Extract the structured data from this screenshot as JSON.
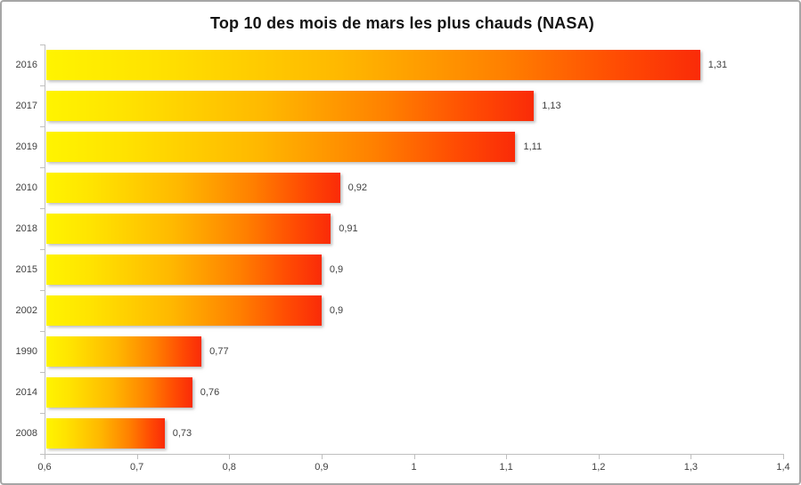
{
  "title": "Top 10 des mois de mars les plus chauds (NASA)",
  "chart_data": {
    "type": "bar",
    "orientation": "horizontal",
    "title": "Top 10 des mois de mars les plus chauds (NASA)",
    "xlabel": "",
    "ylabel": "",
    "categories": [
      "2016",
      "2017",
      "2019",
      "2010",
      "2018",
      "2015",
      "2002",
      "1990",
      "2014",
      "2008"
    ],
    "values": [
      1.31,
      1.13,
      1.11,
      0.92,
      0.91,
      0.9,
      0.9,
      0.77,
      0.76,
      0.73
    ],
    "value_labels": [
      "1,31",
      "1,13",
      "1,11",
      "0,92",
      "0,91",
      "0,9",
      "0,9",
      "0,77",
      "0,76",
      "0,73"
    ],
    "xlim": [
      0.6,
      1.4
    ],
    "x_ticks": [
      0.6,
      0.7,
      0.8,
      0.9,
      1,
      1.1,
      1.2,
      1.3,
      1.4
    ],
    "x_tick_labels": [
      "0,6",
      "0,7",
      "0,8",
      "0,9",
      "1",
      "1,1",
      "1,2",
      "1,3",
      "1,4"
    ],
    "grid": false,
    "legend": null,
    "bar_gradient": [
      "#FFF400",
      "#FFB800",
      "#FA2B08"
    ]
  },
  "colors": {
    "background": "#FFFFFF",
    "border": "#A6A6A6",
    "axis": "#BFBFBF",
    "label": "#404040",
    "title": "#141414",
    "gradient_start": "#FFF400",
    "gradient_mid": "#FFB800",
    "gradient_end": "#FA2B08"
  }
}
